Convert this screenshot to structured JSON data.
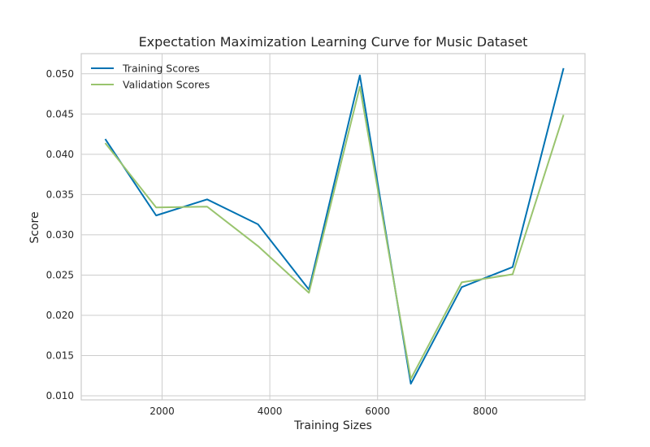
{
  "chart_data": {
    "type": "line",
    "title": "Expectation Maximization Learning Curve for Music Dataset",
    "xlabel": "Training Sizes",
    "ylabel": "Score",
    "xlim": [
      500,
      9850
    ],
    "ylim": [
      0.0095,
      0.0525
    ],
    "xticks": [
      2000,
      4000,
      6000,
      8000
    ],
    "xtick_labels": [
      "2000",
      "4000",
      "6000",
      "8000"
    ],
    "yticks": [
      0.01,
      0.015,
      0.02,
      0.025,
      0.03,
      0.035,
      0.04,
      0.045,
      0.05
    ],
    "ytick_labels": [
      "0.010",
      "0.015",
      "0.020",
      "0.025",
      "0.030",
      "0.035",
      "0.040",
      "0.045",
      "0.050"
    ],
    "grid": true,
    "legend_position": "top-left",
    "x": [
      945,
      1890,
      2836,
      3781,
      4726,
      5671,
      6617,
      7562,
      8507,
      9452
    ],
    "series": [
      {
        "name": "Training Scores",
        "color": "#0072B2",
        "values": [
          0.0419,
          0.0324,
          0.0344,
          0.0313,
          0.0232,
          0.0498,
          0.0115,
          0.0235,
          0.026,
          0.0507
        ]
      },
      {
        "name": "Validation Scores",
        "color": "#99C46E",
        "values": [
          0.0414,
          0.0334,
          0.0335,
          0.0286,
          0.0228,
          0.0484,
          0.0121,
          0.0241,
          0.0251,
          0.0449
        ]
      }
    ]
  }
}
